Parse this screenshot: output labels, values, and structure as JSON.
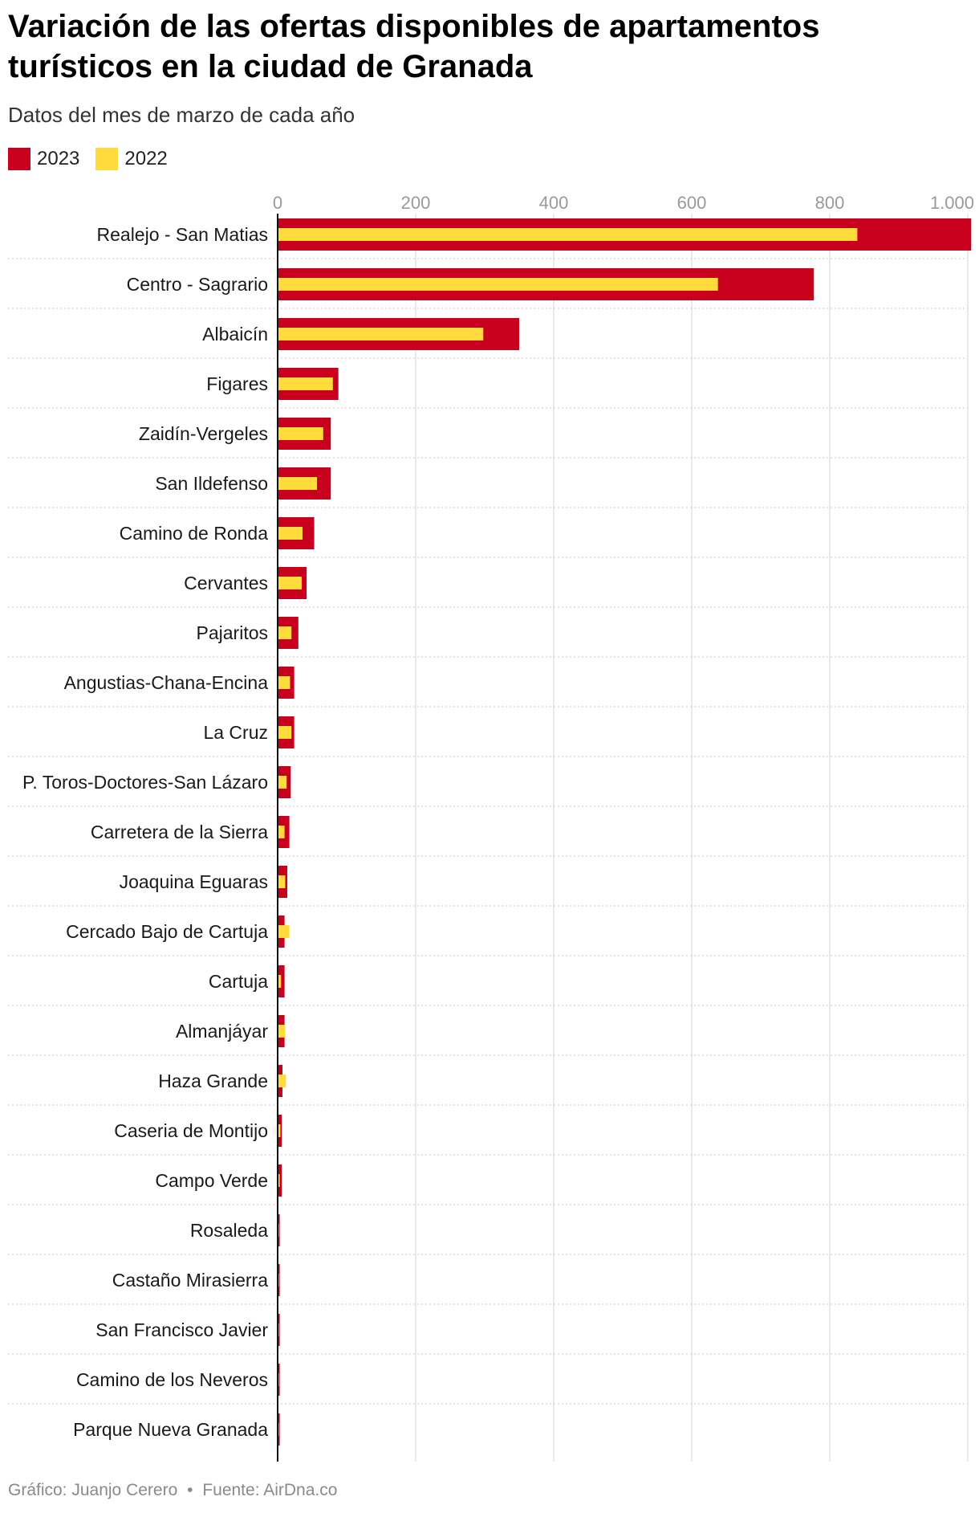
{
  "title": "Variación de las ofertas disponibles de apartamentos turísticos en la ciudad de Granada",
  "subtitle": "Datos del mes de marzo de cada año",
  "footer": {
    "credit": "Gráfico: Juanjo Cerero",
    "separator": "•",
    "source": "Fuente: AirDna.co"
  },
  "colors": {
    "series_2023": "#c8001e",
    "series_2022": "#ffdc3c",
    "grid": "#e3e3e3",
    "row_divider": "#c8c8c8",
    "axis": "#111111",
    "tick_label": "#9a9a9a"
  },
  "chart_data": {
    "type": "bar",
    "orientation": "horizontal",
    "title": "Variación de las ofertas disponibles de apartamentos turísticos en la ciudad de Granada",
    "subtitle": "Datos del mes de marzo de cada año",
    "xlim": [
      0,
      1000
    ],
    "xticks": [
      0,
      200,
      400,
      600,
      800,
      1000
    ],
    "xtick_labels": [
      "0",
      "200",
      "400",
      "600",
      "800",
      "1.000"
    ],
    "grid": true,
    "legend_position": "top-left",
    "categories": [
      "Realejo - San Matias",
      "Centro - Sagrario",
      "Albaicín",
      "Figares",
      "Zaidín-Vergeles",
      "San Ildefenso",
      "Camino de Ronda",
      "Cervantes",
      "Pajaritos",
      "Angustias-Chana-Encina",
      "La Cruz",
      "P. Toros-Doctores-San Lázaro",
      "Carretera de la Sierra",
      "Joaquina Eguaras",
      "Cercado Bajo de Cartuja",
      "Cartuja",
      "Almanjáyar",
      "Haza Grande",
      "Caseria de Montijo",
      "Campo Verde",
      "Rosaleda",
      "Castaño Mirasierra",
      "San Francisco Javier",
      "Camino de los Neveros",
      "Parque Nueva Granada"
    ],
    "series": [
      {
        "name": "2023",
        "values": [
          1005,
          777,
          350,
          88,
          77,
          77,
          53,
          42,
          30,
          24,
          24,
          19,
          17,
          14,
          10,
          10,
          10,
          7,
          6,
          6,
          3,
          3,
          3,
          3,
          3
        ]
      },
      {
        "name": "2022",
        "values": [
          840,
          638,
          298,
          80,
          66,
          57,
          36,
          35,
          20,
          18,
          20,
          13,
          10,
          11,
          17,
          5,
          11,
          12,
          4,
          3,
          1,
          1,
          1,
          1,
          1
        ]
      }
    ]
  }
}
